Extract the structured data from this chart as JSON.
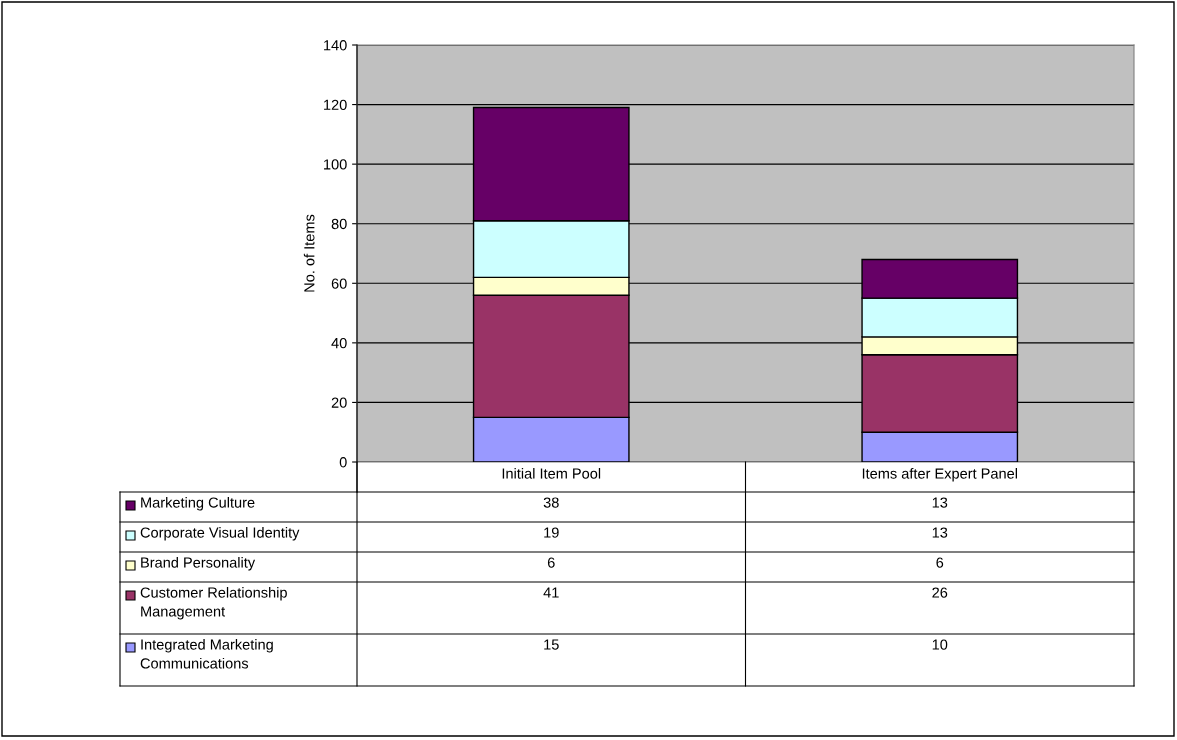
{
  "chart_data": {
    "type": "bar",
    "stacked": true,
    "ylabel": "No. of Items",
    "categories": [
      "Initial Item Pool",
      "Items after Expert Panel"
    ],
    "series": [
      {
        "name": "Integrated Marketing Communications",
        "color": "#9999ff",
        "values": [
          15,
          10
        ]
      },
      {
        "name": "Customer Relationship Management",
        "color": "#993366",
        "values": [
          41,
          26
        ]
      },
      {
        "name": "Brand Personality",
        "color": "#ffffcc",
        "values": [
          6,
          6
        ]
      },
      {
        "name": "Corporate Visual Identity",
        "color": "#ccffff",
        "values": [
          19,
          13
        ]
      },
      {
        "name": "Marketing Culture",
        "color": "#660066",
        "values": [
          38,
          13
        ]
      }
    ],
    "ylim": [
      0,
      140
    ],
    "yticks": [
      0,
      20,
      40,
      60,
      80,
      100,
      120,
      140
    ],
    "grid": "y",
    "data_labels": true,
    "legend": "bottom left"
  }
}
